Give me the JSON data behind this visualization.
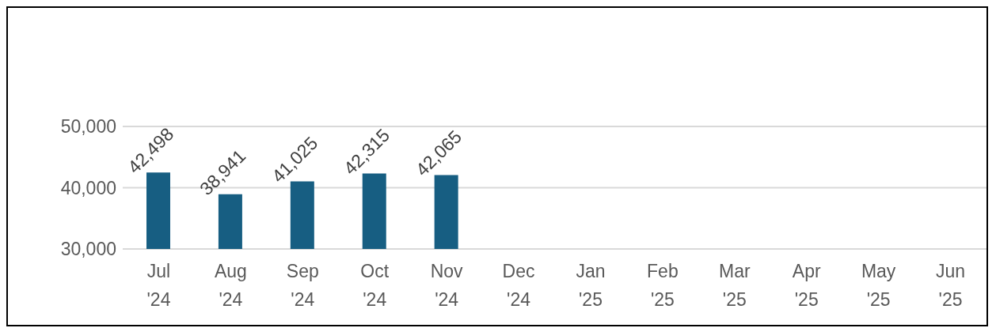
{
  "chart_data": {
    "type": "bar",
    "categories": [
      "Jul '24",
      "Aug '24",
      "Sep '24",
      "Oct '24",
      "Nov '24",
      "Dec '24",
      "Jan '25",
      "Feb '25",
      "Mar '25",
      "Apr '25",
      "May '25",
      "Jun '25"
    ],
    "values": [
      42498,
      38941,
      41025,
      42315,
      42065,
      null,
      null,
      null,
      null,
      null,
      null,
      null
    ],
    "color": "#175e82",
    "value_labels": [
      "42,498",
      "38,941",
      "41,025",
      "42,315",
      "42,065",
      null,
      null,
      null,
      null,
      null,
      null,
      null
    ],
    "ylim": [
      30000,
      50000
    ],
    "yticks": [
      {
        "value": 30000,
        "label": "30,000"
      },
      {
        "value": 40000,
        "label": "40,000"
      },
      {
        "value": 50000,
        "label": "50,000"
      }
    ],
    "grid": "y"
  }
}
